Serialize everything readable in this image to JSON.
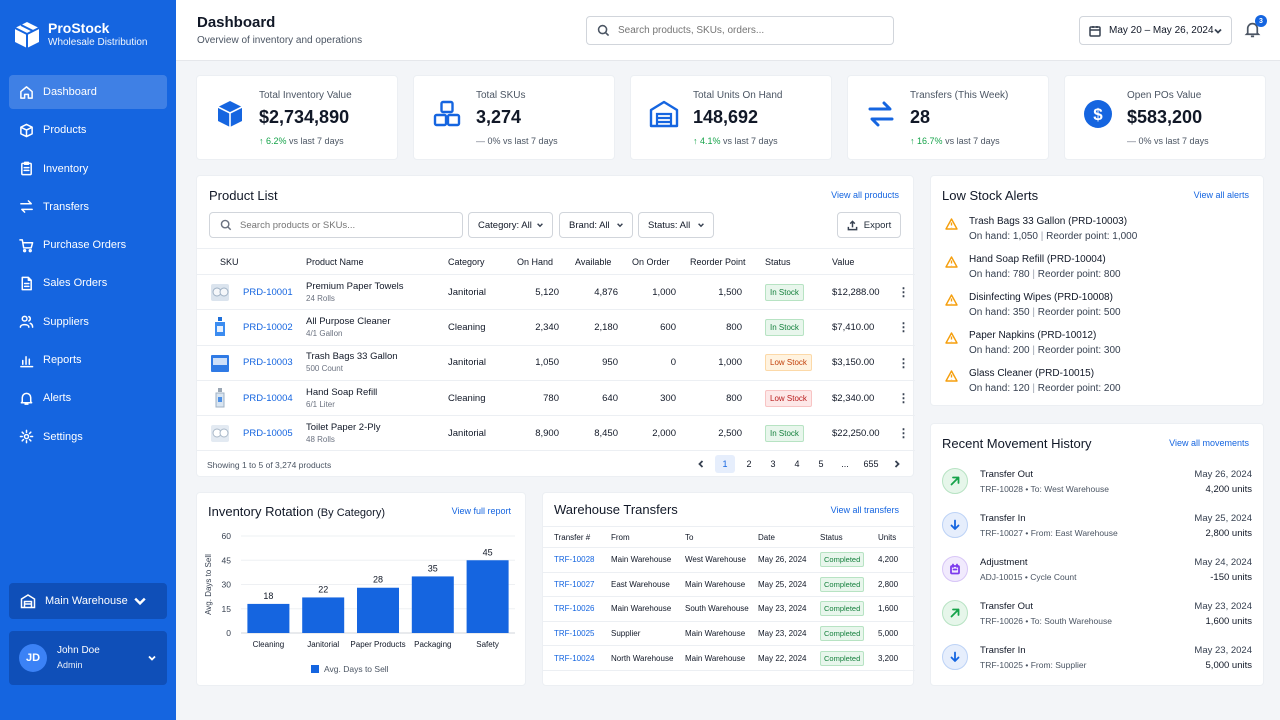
{
  "brand": {
    "name": "ProStock",
    "subtitle": "Wholesale Distribution"
  },
  "nav": [
    {
      "label": "Dashboard",
      "icon": "home-icon",
      "active": true
    },
    {
      "label": "Products",
      "icon": "box-icon"
    },
    {
      "label": "Inventory",
      "icon": "clipboard-icon"
    },
    {
      "label": "Transfers",
      "icon": "transfer-icon"
    },
    {
      "label": "Purchase Orders",
      "icon": "cart-icon"
    },
    {
      "label": "Sales Orders",
      "icon": "document-icon"
    },
    {
      "label": "Suppliers",
      "icon": "users-icon"
    },
    {
      "label": "Reports",
      "icon": "bar-chart-icon"
    },
    {
      "label": "Alerts",
      "icon": "bell-icon"
    },
    {
      "label": "Settings",
      "icon": "gear-icon"
    }
  ],
  "warehouse_selector": {
    "label": "Main Warehouse"
  },
  "user": {
    "initials": "JD",
    "name": "John Doe",
    "role": "Admin"
  },
  "header": {
    "title": "Dashboard",
    "subtitle": "Overview of inventory and operations",
    "search_placeholder": "Search products, SKUs, orders...",
    "date_range": "May 20 – May 26, 2024",
    "notification_count": "3"
  },
  "kpis": [
    {
      "label": "Total Inventory Value",
      "value": "$2,734,890",
      "change": "6.2%",
      "change_suffix": "vs last 7 days",
      "trend": "up",
      "icon": "box-3d-icon"
    },
    {
      "label": "Total SKUs",
      "value": "3,274",
      "change": "0%",
      "change_suffix": "vs last 7 days",
      "trend": "flat",
      "icon": "stacked-boxes-icon"
    },
    {
      "label": "Total Units On Hand",
      "value": "148,692",
      "change": "4.1%",
      "change_suffix": "vs last 7 days",
      "trend": "up",
      "icon": "warehouse-icon"
    },
    {
      "label": "Transfers (This Week)",
      "value": "28",
      "change": "16.7%",
      "change_suffix": "vs last 7 days",
      "trend": "up",
      "icon": "transfer-arrows-icon"
    },
    {
      "label": "Open POs Value",
      "value": "$583,200",
      "change": "0%",
      "change_suffix": "vs last 7 days",
      "trend": "flat",
      "icon": "dollar-circle-icon"
    }
  ],
  "product_list": {
    "title": "Product List",
    "view_all": "View all products",
    "search_placeholder": "Search products or SKUs...",
    "filters": {
      "category": "Category: All",
      "brand": "Brand: All",
      "status": "Status: All"
    },
    "export_label": "Export",
    "columns": [
      "SKU",
      "Product Name",
      "Category",
      "On Hand",
      "Available",
      "On Order",
      "Reorder Point",
      "Status",
      "Value"
    ],
    "rows": [
      {
        "sku": "PRD-10001",
        "name": "Premium Paper Towels",
        "sub": "24 Rolls",
        "category": "Janitorial",
        "on_hand": "5,120",
        "available": "4,876",
        "on_order": "1,000",
        "reorder": "1,500",
        "status": "In Stock",
        "status_type": "in",
        "value": "$12,288.00"
      },
      {
        "sku": "PRD-10002",
        "name": "All Purpose Cleaner",
        "sub": "4/1 Gallon",
        "category": "Cleaning",
        "on_hand": "2,340",
        "available": "2,180",
        "on_order": "600",
        "reorder": "800",
        "status": "In Stock",
        "status_type": "in",
        "value": "$7,410.00"
      },
      {
        "sku": "PRD-10003",
        "name": "Trash Bags 33 Gallon",
        "sub": "500 Count",
        "category": "Janitorial",
        "on_hand": "1,050",
        "available": "950",
        "on_order": "0",
        "reorder": "1,000",
        "status": "Low Stock",
        "status_type": "low",
        "value": "$3,150.00"
      },
      {
        "sku": "PRD-10004",
        "name": "Hand Soap Refill",
        "sub": "6/1 Liter",
        "category": "Cleaning",
        "on_hand": "780",
        "available": "640",
        "on_order": "300",
        "reorder": "800",
        "status": "Low Stock",
        "status_type": "lows",
        "value": "$2,340.00"
      },
      {
        "sku": "PRD-10005",
        "name": "Toilet Paper 2-Ply",
        "sub": "48 Rolls",
        "category": "Janitorial",
        "on_hand": "8,900",
        "available": "8,450",
        "on_order": "2,000",
        "reorder": "2,500",
        "status": "In Stock",
        "status_type": "in",
        "value": "$22,250.00"
      }
    ],
    "pager_info": "Showing 1 to 5 of 3,274 products",
    "pages": [
      "1",
      "2",
      "3",
      "4",
      "5",
      "...",
      "655"
    ]
  },
  "low_stock": {
    "title": "Low Stock Alerts",
    "view_all": "View all alerts",
    "items": [
      {
        "title": "Trash Bags 33 Gallon (PRD-10003)",
        "on_hand": "On hand: 1,050",
        "reorder": "Reorder point: 1,000"
      },
      {
        "title": "Hand Soap Refill (PRD-10004)",
        "on_hand": "On hand: 780",
        "reorder": "Reorder point: 800"
      },
      {
        "title": "Disinfecting Wipes (PRD-10008)",
        "on_hand": "On hand: 350",
        "reorder": "Reorder point: 500"
      },
      {
        "title": "Paper Napkins (PRD-10012)",
        "on_hand": "On hand: 200",
        "reorder": "Reorder point: 300"
      },
      {
        "title": "Glass Cleaner (PRD-10015)",
        "on_hand": "On hand: 120",
        "reorder": "Reorder point: 200"
      }
    ]
  },
  "movement": {
    "title": "Recent Movement History",
    "view_all": "View all movements",
    "items": [
      {
        "type": "Transfer Out",
        "ref": "TRF-10028 • To: West Warehouse",
        "date": "May 26, 2024",
        "units": "4,200 units",
        "kind": "out"
      },
      {
        "type": "Transfer In",
        "ref": "TRF-10027 • From: East Warehouse",
        "date": "May 25, 2024",
        "units": "2,800 units",
        "kind": "in"
      },
      {
        "type": "Adjustment",
        "ref": "ADJ-10015 • Cycle Count",
        "date": "May 24, 2024",
        "units": "-150 units",
        "kind": "adj"
      },
      {
        "type": "Transfer Out",
        "ref": "TRF-10026 • To: South Warehouse",
        "date": "May 23, 2024",
        "units": "1,600 units",
        "kind": "out"
      },
      {
        "type": "Transfer In",
        "ref": "TRF-10025 • From: Supplier",
        "date": "May 23, 2024",
        "units": "5,000 units",
        "kind": "in"
      }
    ]
  },
  "rotation": {
    "title": "Inventory Rotation",
    "title_suffix": "(By Category)",
    "view_all": "View full report"
  },
  "chart_data": {
    "type": "bar",
    "title": "Inventory Rotation (By Category)",
    "categories": [
      "Cleaning",
      "Janitorial",
      "Paper Products",
      "Packaging",
      "Safety"
    ],
    "series": [
      {
        "name": "Avg. Days to Sell",
        "values": [
          18,
          22,
          28,
          35,
          45
        ]
      }
    ],
    "ylabel": "Avg. Days to Sell",
    "ylim": [
      0,
      60
    ],
    "yticks": [
      0,
      15,
      30,
      45,
      60
    ],
    "color": "#1565e0",
    "legend": "bottom"
  },
  "transfers": {
    "title": "Warehouse Transfers",
    "view_all": "View all transfers",
    "columns": [
      "Transfer #",
      "From",
      "To",
      "Date",
      "Status",
      "Units"
    ],
    "rows": [
      {
        "id": "TRF-10028",
        "from": "Main Warehouse",
        "to": "West Warehouse",
        "date": "May 26, 2024",
        "status": "Completed",
        "units": "4,200"
      },
      {
        "id": "TRF-10027",
        "from": "East Warehouse",
        "to": "Main Warehouse",
        "date": "May 25, 2024",
        "status": "Completed",
        "units": "2,800"
      },
      {
        "id": "TRF-10026",
        "from": "Main Warehouse",
        "to": "South Warehouse",
        "date": "May 23, 2024",
        "status": "Completed",
        "units": "1,600"
      },
      {
        "id": "TRF-10025",
        "from": "Supplier",
        "to": "Main Warehouse",
        "date": "May 23, 2024",
        "status": "Completed",
        "units": "5,000"
      },
      {
        "id": "TRF-10024",
        "from": "North Warehouse",
        "to": "Main Warehouse",
        "date": "May 22, 2024",
        "status": "Completed",
        "units": "3,200"
      }
    ]
  }
}
